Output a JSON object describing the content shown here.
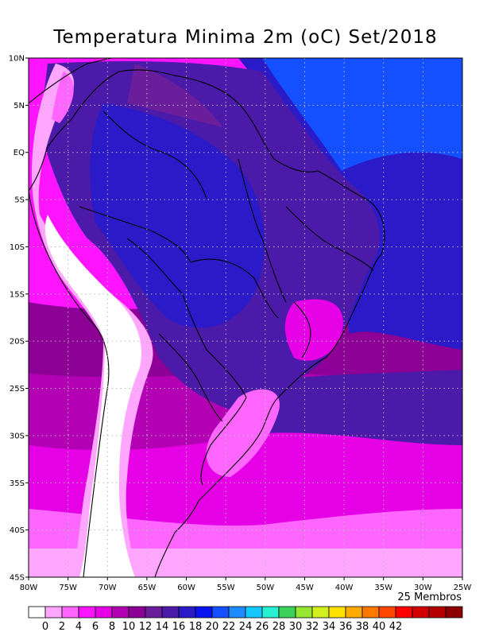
{
  "title": "Temperatura Minima 2m (oC) Set/2018",
  "members_label": "25 Membros",
  "map": {
    "lon_range": [
      -80,
      -25
    ],
    "lat_range": [
      -45,
      10
    ],
    "lat_ticks": [
      {
        "value": 10,
        "label": "10N"
      },
      {
        "value": 5,
        "label": "5N"
      },
      {
        "value": 0,
        "label": "EQ"
      },
      {
        "value": -5,
        "label": "5S"
      },
      {
        "value": -10,
        "label": "10S"
      },
      {
        "value": -15,
        "label": "15S"
      },
      {
        "value": -20,
        "label": "20S"
      },
      {
        "value": -25,
        "label": "25S"
      },
      {
        "value": -30,
        "label": "30S"
      },
      {
        "value": -35,
        "label": "35S"
      },
      {
        "value": -40,
        "label": "40S"
      },
      {
        "value": -45,
        "label": "45S"
      }
    ],
    "lon_ticks": [
      {
        "value": -80,
        "label": "80W"
      },
      {
        "value": -75,
        "label": "75W"
      },
      {
        "value": -70,
        "label": "70W"
      },
      {
        "value": -65,
        "label": "65W"
      },
      {
        "value": -60,
        "label": "60W"
      },
      {
        "value": -55,
        "label": "55W"
      },
      {
        "value": -50,
        "label": "50W"
      },
      {
        "value": -45,
        "label": "45W"
      },
      {
        "value": -40,
        "label": "40W"
      },
      {
        "value": -35,
        "label": "35W"
      },
      {
        "value": -30,
        "label": "30W"
      },
      {
        "value": -25,
        "label": "25W"
      }
    ],
    "grid": true
  },
  "colorbar": {
    "colors": [
      "#ffffff",
      "#ffa6ff",
      "#ff66ff",
      "#ff14ff",
      "#e600e6",
      "#b400b4",
      "#8c0096",
      "#6a1e9c",
      "#4b1aa8",
      "#2a1ac8",
      "#0a14f0",
      "#1450ff",
      "#1e8cff",
      "#14c8ff",
      "#28f0d2",
      "#3cd25a",
      "#96e632",
      "#d2f01e",
      "#ffe100",
      "#ffaa00",
      "#ff7800",
      "#ff4600",
      "#ff0000",
      "#d20000",
      "#b40000",
      "#8c0000"
    ],
    "labels": [
      "0",
      "2",
      "4",
      "6",
      "8",
      "10",
      "12",
      "14",
      "16",
      "18",
      "20",
      "22",
      "24",
      "26",
      "28",
      "30",
      "32",
      "34",
      "36",
      "38",
      "40",
      "42"
    ]
  }
}
